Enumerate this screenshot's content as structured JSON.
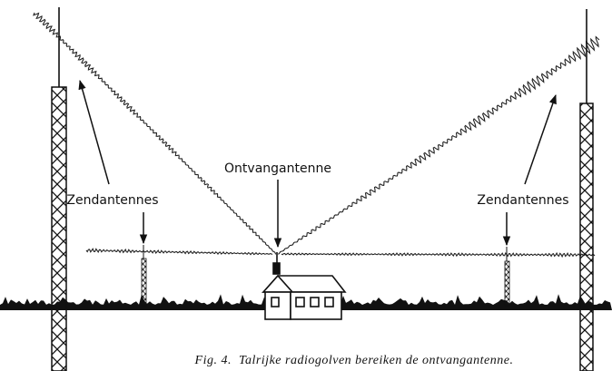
{
  "labels": {
    "receiver": "Ontvangantenne",
    "transmitters_left": "Zendantennes",
    "transmitters_right": "Zendantennes"
  },
  "caption": "Fig. 4.  Talrijke radiogolven bereiken de ontvangantenne."
}
